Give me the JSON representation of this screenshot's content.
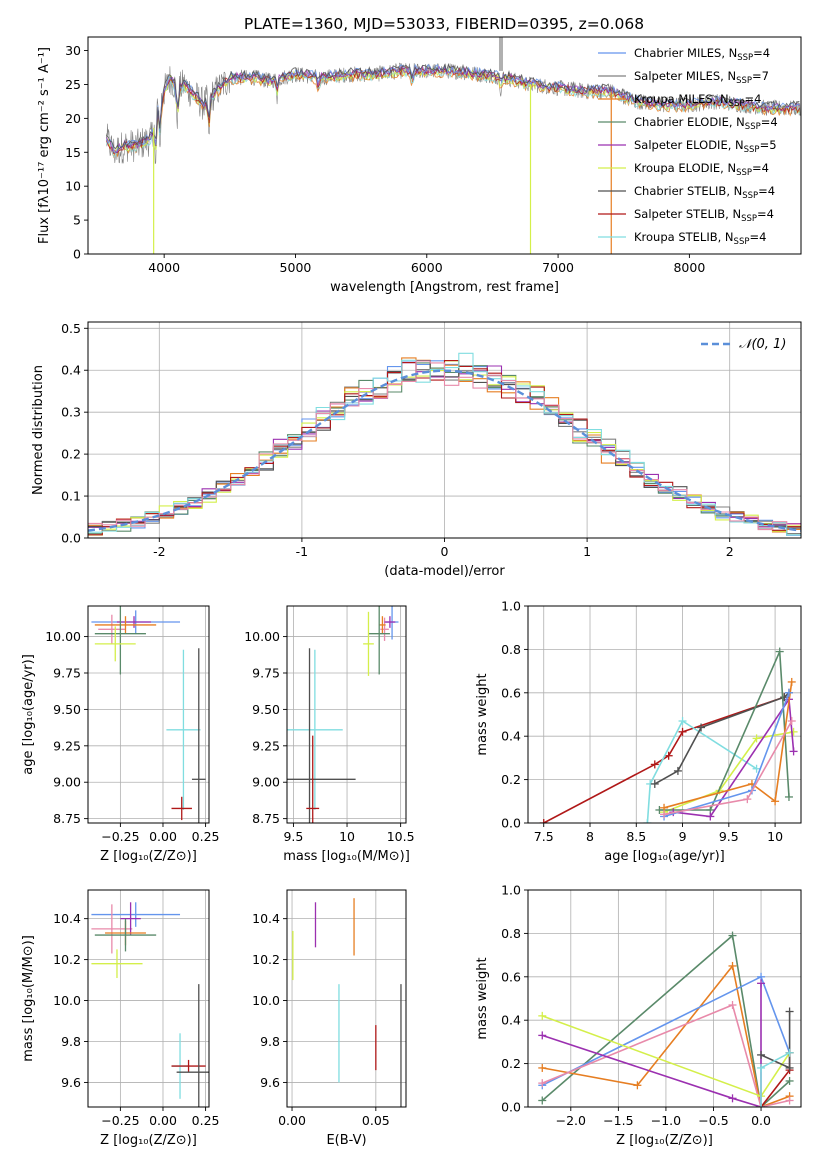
{
  "title": "PLATE=1360, MJD=53033, FIBERID=0395, z=0.068",
  "colors": {
    "chabrier_miles": "#6495ed",
    "salpeter_miles": "#808080",
    "kroupa_miles": "#e67e22",
    "chabrier_elodie": "#5a8a6a",
    "salpeter_elodie": "#9b30b0",
    "kroupa_elodie": "#d4ef4a",
    "chabrier_stelib": "#505050",
    "salpeter_stelib": "#b01818",
    "kroupa_stelib": "#80dde0",
    "pink": "#e88aaa",
    "gauss": "#5b8fd9"
  },
  "chart_data": [
    {
      "id": "spectrum",
      "type": "line",
      "xlabel": "wavelength [Angstrom, rest frame]",
      "ylabel": "Flux [fλ10⁻¹⁷ erg cm⁻² s⁻¹ A⁻¹]",
      "xlim": [
        3420,
        8850
      ],
      "ylim": [
        0,
        32
      ],
      "xticks": [
        4000,
        5000,
        6000,
        7000,
        8000
      ],
      "yticks": [
        0,
        5,
        10,
        15,
        20,
        25,
        30
      ],
      "grid": false,
      "legend_position": "top-right",
      "legend": [
        {
          "name": "Chabrier MILES",
          "nssp": "4",
          "color": "chabrier_miles"
        },
        {
          "name": "Salpeter MILES",
          "nssp": "7",
          "color": "salpeter_miles"
        },
        {
          "name": "Kroupa MILES",
          "nssp": "4",
          "color": "kroupa_miles"
        },
        {
          "name": "Chabrier ELODIE",
          "nssp": "4",
          "color": "chabrier_elodie"
        },
        {
          "name": "Salpeter ELODIE",
          "nssp": "5",
          "color": "salpeter_elodie"
        },
        {
          "name": "Kroupa ELODIE",
          "nssp": "4",
          "color": "kroupa_elodie"
        },
        {
          "name": "Chabrier STELIB",
          "nssp": "4",
          "color": "chabrier_stelib"
        },
        {
          "name": "Salpeter STELIB",
          "nssp": "4",
          "color": "salpeter_stelib"
        },
        {
          "name": "Kroupa STELIB",
          "nssp": "4",
          "color": "kroupa_stelib"
        }
      ],
      "continuum": [
        [
          3560,
          17
        ],
        [
          3620,
          15
        ],
        [
          3700,
          16
        ],
        [
          3800,
          16
        ],
        [
          3900,
          17
        ],
        [
          3950,
          21
        ],
        [
          4000,
          24
        ],
        [
          4050,
          26
        ],
        [
          4100,
          24
        ],
        [
          4150,
          25
        ],
        [
          4200,
          24
        ],
        [
          4300,
          22
        ],
        [
          4400,
          24
        ],
        [
          4500,
          26
        ],
        [
          4600,
          26
        ],
        [
          4700,
          26
        ],
        [
          4800,
          25.5
        ],
        [
          4900,
          26
        ],
        [
          5000,
          26.5
        ],
        [
          5200,
          26
        ],
        [
          5400,
          26.5
        ],
        [
          5600,
          26.5
        ],
        [
          5800,
          27
        ],
        [
          6000,
          27
        ],
        [
          6200,
          27
        ],
        [
          6400,
          26.5
        ],
        [
          6600,
          26
        ],
        [
          6800,
          25
        ],
        [
          7000,
          24.5
        ],
        [
          7200,
          24
        ],
        [
          7400,
          24
        ],
        [
          7600,
          22.5
        ],
        [
          7800,
          22
        ],
        [
          8000,
          22
        ],
        [
          8200,
          22.5
        ],
        [
          8400,
          22
        ],
        [
          8600,
          21.5
        ],
        [
          8800,
          21.5
        ]
      ],
      "model_colors": [
        "kroupa_miles",
        "kroupa_stelib",
        "kroupa_elodie",
        "salpeter_stelib",
        "salpeter_elodie",
        "chabrier_miles",
        "chabrier_stelib"
      ]
    },
    {
      "id": "residuals",
      "type": "step",
      "xlabel": "(data-model)/error",
      "ylabel": "Normed distribution",
      "xlim": [
        -2.5,
        2.5
      ],
      "ylim": [
        0,
        0.515
      ],
      "xticks": [
        -2,
        -1,
        0,
        1,
        2
      ],
      "yticks": [
        0.0,
        0.1,
        0.2,
        0.3,
        0.4,
        0.5
      ],
      "grid": true,
      "legend_position": "top-right",
      "gauss_label": "𝒩(0, 1)",
      "series_colors": [
        "chabrier_miles",
        "salpeter_miles",
        "kroupa_miles",
        "chabrier_elodie",
        "salpeter_elodie",
        "kroupa_elodie",
        "chabrier_stelib",
        "salpeter_stelib",
        "kroupa_stelib",
        "pink"
      ]
    },
    {
      "id": "age-vs-z",
      "type": "errorbar",
      "xlabel": "Z [log₁₀(Z/Z⊙)]",
      "ylabel": "age [log₁₀(age/yr)]",
      "xlim": [
        -0.44,
        0.27
      ],
      "ylim": [
        8.72,
        10.21
      ],
      "xticks": [
        -0.25,
        0.0,
        0.25
      ],
      "xtick_labels": [
        "−0.25",
        "0.00",
        "0.25"
      ],
      "yticks": [
        8.75,
        9.0,
        9.25,
        9.5,
        9.75,
        10.0
      ],
      "grid": true,
      "points": [
        {
          "x": -0.16,
          "y": 10.1,
          "xerr": 0.26,
          "yerr": 0.08,
          "color": "chabrier_miles"
        },
        {
          "x": -0.3,
          "y": 10.05,
          "xerr": 0.08,
          "yerr": 0.1,
          "color": "pink"
        },
        {
          "x": -0.17,
          "y": 10.1,
          "xerr": 0.1,
          "yerr": 0.04,
          "color": "salpeter_elodie"
        },
        {
          "x": -0.22,
          "y": 10.08,
          "xerr": 0.18,
          "yerr": 0.06,
          "color": "kroupa_miles"
        },
        {
          "x": -0.25,
          "y": 10.02,
          "xerr": 0.15,
          "yerr": 0.28,
          "color": "chabrier_elodie"
        },
        {
          "x": -0.28,
          "y": 9.95,
          "xerr": 0.12,
          "yerr": 0.12,
          "color": "kroupa_elodie"
        },
        {
          "x": 0.12,
          "y": 9.36,
          "xerr": 0.1,
          "yerr": 0.55,
          "color": "kroupa_stelib"
        },
        {
          "x": 0.21,
          "y": 9.02,
          "xerr": 0.04,
          "yerr": 0.9,
          "color": "chabrier_stelib"
        },
        {
          "x": 0.11,
          "y": 8.82,
          "xerr": 0.06,
          "yerr": 0.08,
          "color": "salpeter_stelib"
        }
      ]
    },
    {
      "id": "age-vs-mass",
      "type": "errorbar",
      "xlabel": "mass [log₁₀(M/M⊙)]",
      "ylabel": "",
      "xlim": [
        9.44,
        10.55
      ],
      "ylim": [
        8.72,
        10.21
      ],
      "xticks": [
        9.5,
        10.0,
        10.5
      ],
      "yticks": [
        8.75,
        9.0,
        9.25,
        9.5,
        9.75,
        10.0
      ],
      "grid": true,
      "points": [
        {
          "x": 10.42,
          "y": 10.1,
          "xerr": 0.06,
          "yerr": 0.12,
          "color": "chabrier_miles"
        },
        {
          "x": 10.35,
          "y": 10.05,
          "xerr": 0.04,
          "yerr": 0.08,
          "color": "pink"
        },
        {
          "x": 10.4,
          "y": 10.1,
          "xerr": 0.05,
          "yerr": 0.04,
          "color": "salpeter_elodie"
        },
        {
          "x": 10.33,
          "y": 10.08,
          "xerr": 0.03,
          "yerr": 0.06,
          "color": "kroupa_miles"
        },
        {
          "x": 10.3,
          "y": 10.02,
          "xerr": 0.1,
          "yerr": 0.28,
          "color": "chabrier_elodie"
        },
        {
          "x": 10.2,
          "y": 9.95,
          "xerr": 0.05,
          "yerr": 0.22,
          "color": "kroupa_elodie"
        },
        {
          "x": 9.7,
          "y": 9.36,
          "xerr": 0.26,
          "yerr": 0.55,
          "color": "kroupa_stelib"
        },
        {
          "x": 9.65,
          "y": 9.02,
          "xerr": 0.43,
          "yerr": 0.9,
          "color": "chabrier_stelib"
        },
        {
          "x": 9.68,
          "y": 8.82,
          "xerr": 0.06,
          "yerr": 0.5,
          "color": "salpeter_stelib"
        }
      ]
    },
    {
      "id": "massweight-vs-age",
      "type": "line",
      "xlabel": "age  [log₁₀(age/yr)]",
      "ylabel": "mass weight",
      "xlim": [
        7.33,
        10.28
      ],
      "ylim": [
        0.0,
        1.0
      ],
      "xticks": [
        7.5,
        8.0,
        8.5,
        9.0,
        9.5,
        10.0
      ],
      "yticks": [
        0.0,
        0.2,
        0.4,
        0.6,
        0.8,
        1.0
      ],
      "grid": true,
      "series": [
        {
          "color": "salpeter_stelib",
          "x": [
            7.5,
            8.7,
            8.85,
            9.0,
            10.1
          ],
          "y": [
            0.0,
            0.27,
            0.31,
            0.42,
            0.58
          ]
        },
        {
          "color": "kroupa_stelib",
          "x": [
            8.62,
            8.65,
            9.0,
            9.8
          ],
          "y": [
            0.0,
            0.18,
            0.47,
            0.25
          ]
        },
        {
          "color": "chabrier_stelib",
          "x": [
            8.7,
            8.95,
            9.2,
            10.1,
            10.15
          ],
          "y": [
            0.18,
            0.24,
            0.44,
            0.58,
            0.6
          ]
        },
        {
          "color": "kroupa_elodie",
          "x": [
            8.8,
            9.4,
            9.8,
            10.2
          ],
          "y": [
            0.05,
            0.15,
            0.39,
            0.42
          ]
        },
        {
          "color": "chabrier_elodie",
          "x": [
            8.75,
            9.3,
            10.05,
            10.15
          ],
          "y": [
            0.06,
            0.06,
            0.79,
            0.12
          ]
        },
        {
          "color": "salpeter_elodie",
          "x": [
            8.9,
            9.3,
            10.15,
            10.2
          ],
          "y": [
            0.05,
            0.03,
            0.57,
            0.33
          ]
        },
        {
          "color": "kroupa_miles",
          "x": [
            8.8,
            9.75,
            10.0,
            10.18
          ],
          "y": [
            0.07,
            0.18,
            0.1,
            0.65
          ]
        },
        {
          "color": "chabrier_miles",
          "x": [
            8.8,
            9.75,
            10.15
          ],
          "y": [
            0.03,
            0.15,
            0.6
          ]
        },
        {
          "color": "pink",
          "x": [
            8.8,
            9.7,
            10.18
          ],
          "y": [
            0.04,
            0.11,
            0.47
          ]
        }
      ]
    },
    {
      "id": "mass-vs-z",
      "type": "errorbar",
      "xlabel": "Z [log₁₀(Z/Z⊙)]",
      "ylabel": "mass [log₁₀(M/M⊙)]",
      "xlim": [
        -0.44,
        0.27
      ],
      "ylim": [
        9.48,
        10.54
      ],
      "xticks": [
        -0.25,
        0.0,
        0.25
      ],
      "xtick_labels": [
        "−0.25",
        "0.00",
        "0.25"
      ],
      "yticks": [
        9.6,
        9.8,
        10.0,
        10.2,
        10.4
      ],
      "grid": true,
      "points": [
        {
          "x": -0.16,
          "y": 10.42,
          "xerr": 0.26,
          "yerr": 0.06,
          "color": "chabrier_miles"
        },
        {
          "x": -0.3,
          "y": 10.35,
          "xerr": 0.12,
          "yerr": 0.12,
          "color": "pink"
        },
        {
          "x": -0.19,
          "y": 10.4,
          "xerr": 0.06,
          "yerr": 0.08,
          "color": "salpeter_elodie"
        },
        {
          "x": -0.22,
          "y": 10.33,
          "xerr": 0.12,
          "yerr": 0.06,
          "color": "kroupa_miles"
        },
        {
          "x": -0.22,
          "y": 10.32,
          "xerr": 0.18,
          "yerr": 0.08,
          "color": "chabrier_elodie"
        },
        {
          "x": -0.27,
          "y": 10.18,
          "xerr": 0.15,
          "yerr": 0.07,
          "color": "kroupa_elodie"
        },
        {
          "x": 0.1,
          "y": 9.68,
          "xerr": 0.05,
          "yerr": 0.16,
          "color": "kroupa_stelib"
        },
        {
          "x": 0.15,
          "y": 9.68,
          "xerr": 0.1,
          "yerr": 0.03,
          "color": "salpeter_stelib"
        },
        {
          "x": 0.21,
          "y": 9.65,
          "xerr": 0.13,
          "yerr": 0.43,
          "color": "chabrier_stelib"
        }
      ]
    },
    {
      "id": "mass-vs-ebv",
      "type": "errorbar",
      "xlabel": "E(B-V)",
      "ylabel": "",
      "xlim": [
        -0.003,
        0.068
      ],
      "ylim": [
        9.48,
        10.54
      ],
      "xticks": [
        0.0,
        0.05
      ],
      "xtick_labels": [
        "0.00",
        "0.05"
      ],
      "yticks": [
        9.6,
        9.8,
        10.0,
        10.2,
        10.4
      ],
      "grid": true,
      "points": [
        {
          "x": 0.0005,
          "y": 10.22,
          "xerr": 0.0,
          "yerr": 0.12,
          "color": "kroupa_elodie"
        },
        {
          "x": 0.014,
          "y": 10.37,
          "xerr": 0.0,
          "yerr": 0.11,
          "color": "salpeter_elodie"
        },
        {
          "x": 0.037,
          "y": 10.36,
          "xerr": 0.0,
          "yerr": 0.14,
          "color": "kroupa_miles"
        },
        {
          "x": 0.028,
          "y": 9.84,
          "xerr": 0.0,
          "yerr": 0.24,
          "color": "kroupa_stelib"
        },
        {
          "x": 0.05,
          "y": 9.77,
          "xerr": 0.0,
          "yerr": 0.11,
          "color": "salpeter_stelib"
        },
        {
          "x": 0.065,
          "y": 9.74,
          "xerr": 0.0,
          "yerr": 0.34,
          "color": "chabrier_stelib"
        }
      ]
    },
    {
      "id": "massweight-vs-z",
      "type": "line",
      "xlabel": "Z [log₁₀(Z/Z⊙)]",
      "ylabel": "mass weight",
      "xlim": [
        -2.45,
        0.42
      ],
      "ylim": [
        0.0,
        1.0
      ],
      "xticks": [
        -2.0,
        -1.5,
        -1.0,
        -0.5,
        0.0
      ],
      "xtick_labels": [
        "−2.0",
        "−1.5",
        "−1.0",
        "−0.5",
        "0.0"
      ],
      "yticks": [
        0.0,
        0.2,
        0.4,
        0.6,
        0.8,
        1.0
      ],
      "grid": true,
      "series": [
        {
          "color": "chabrier_elodie",
          "x": [
            -2.3,
            -0.3,
            0.0,
            0.3
          ],
          "y": [
            0.03,
            0.79,
            0.0,
            0.12
          ]
        },
        {
          "color": "kroupa_miles",
          "x": [
            -2.3,
            -1.3,
            -0.3,
            0.0,
            0.3
          ],
          "y": [
            0.18,
            0.1,
            0.65,
            0.0,
            0.05
          ]
        },
        {
          "color": "chabrier_miles",
          "x": [
            -2.3,
            0.0,
            0.3
          ],
          "y": [
            0.1,
            0.6,
            0.25
          ]
        },
        {
          "color": "pink",
          "x": [
            -2.3,
            -0.3,
            0.0,
            0.3
          ],
          "y": [
            0.11,
            0.47,
            0.0,
            0.03
          ]
        },
        {
          "color": "kroupa_elodie",
          "x": [
            -2.3,
            0.0,
            0.3
          ],
          "y": [
            0.42,
            0.05,
            0.25
          ]
        },
        {
          "color": "salpeter_elodie",
          "x": [
            -2.3,
            -0.3,
            0.0,
            0.0
          ],
          "y": [
            0.33,
            0.04,
            0.0,
            0.57
          ]
        },
        {
          "color": "salpeter_stelib",
          "x": [
            0.0,
            0.3,
            0.3
          ],
          "y": [
            0.0,
            0.17,
            0.25
          ]
        },
        {
          "color": "chabrier_stelib",
          "x": [
            0.0,
            0.3,
            0.3
          ],
          "y": [
            0.24,
            0.18,
            0.44
          ]
        },
        {
          "color": "kroupa_stelib",
          "x": [
            0.0,
            0.0,
            0.3
          ],
          "y": [
            0.0,
            0.18,
            0.25
          ]
        }
      ]
    }
  ]
}
